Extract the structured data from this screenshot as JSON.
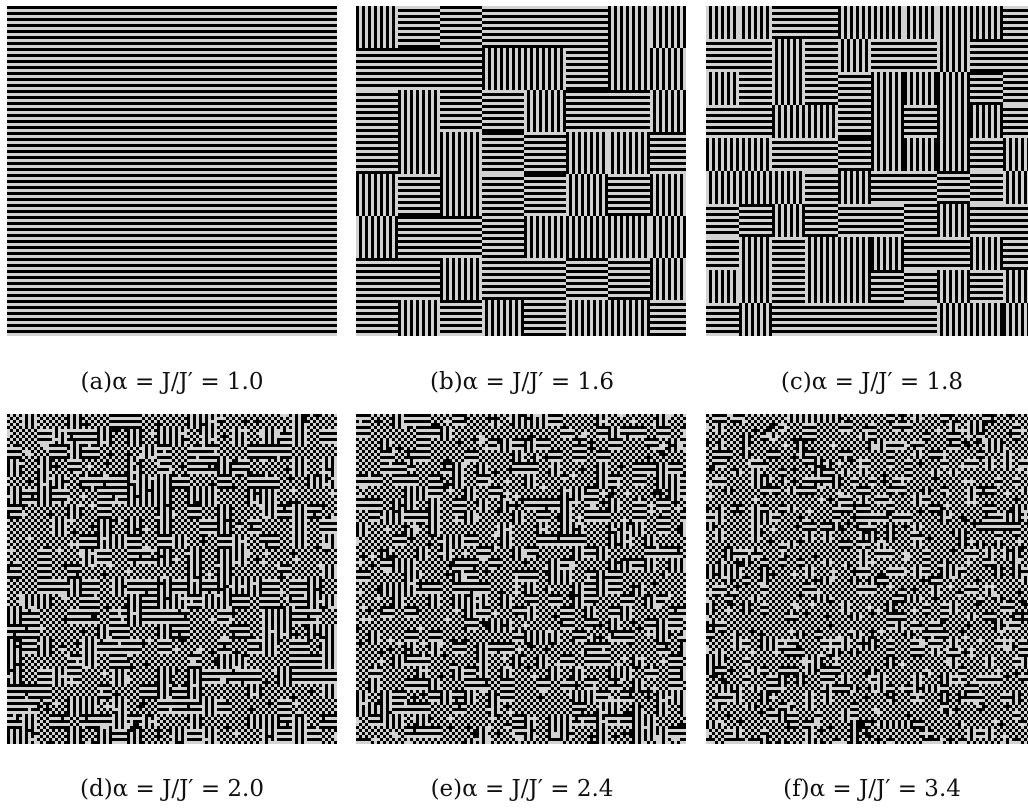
{
  "figure": {
    "panels": [
      {
        "tag": "(a)",
        "expression": "α = J/J′ = 1.0",
        "alpha": 1.0
      },
      {
        "tag": "(b)",
        "expression": "α = J/J′ = 1.6",
        "alpha": 1.6
      },
      {
        "tag": "(c)",
        "expression": "α = J/J′ = 1.8",
        "alpha": 1.8
      },
      {
        "tag": "(d)",
        "expression": "α = J/J′ = 2.0",
        "alpha": 2.0
      },
      {
        "tag": "(e)",
        "expression": "α = J/J′ = 2.4",
        "alpha": 2.4
      },
      {
        "tag": "(f)",
        "expression": "α = J/J′ = 3.4",
        "alpha": 3.4
      }
    ],
    "colors": {
      "spin_up": "#d2d2d2",
      "spin_down": "#000000"
    },
    "lattice_size": 110
  }
}
